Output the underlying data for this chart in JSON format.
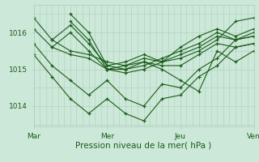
{
  "xlabel": "Pression niveau de la mer( hPa )",
  "bg_color": "#cce8d8",
  "grid_color_v": "#b0ccbc",
  "grid_color_h": "#b0ccbc",
  "line_color": "#1a5c1a",
  "yticks": [
    1014,
    1015,
    1016
  ],
  "ylim": [
    1013.45,
    1016.75
  ],
  "xlim": [
    0,
    72
  ],
  "xtick_positions": [
    0,
    24,
    48,
    72
  ],
  "xtick_labels": [
    "Mar",
    "Mer",
    "Jeu",
    "Ven"
  ],
  "series": [
    [
      0,
      1016.4,
      6,
      1015.8,
      12,
      1015.5,
      18,
      1015.4,
      24,
      1015.2,
      30,
      1015.1,
      36,
      1015.3,
      42,
      1015.2,
      48,
      1015.4,
      54,
      1015.6,
      60,
      1015.9,
      66,
      1015.8,
      72,
      1015.9
    ],
    [
      0,
      1016.1,
      6,
      1015.6,
      12,
      1015.4,
      18,
      1015.3,
      24,
      1015.0,
      30,
      1015.0,
      36,
      1015.2,
      42,
      1015.1,
      48,
      1015.1,
      54,
      1015.4,
      60,
      1015.7,
      66,
      1015.6,
      72,
      1015.7
    ],
    [
      6,
      1015.8,
      12,
      1016.2,
      18,
      1015.7,
      24,
      1015.1,
      30,
      1015.0,
      36,
      1015.1,
      42,
      1015.3,
      48,
      1015.5,
      54,
      1015.7,
      60,
      1016.0,
      66,
      1015.8,
      72,
      1016.0
    ],
    [
      6,
      1015.6,
      12,
      1016.0,
      18,
      1015.5,
      24,
      1015.0,
      30,
      1014.9,
      36,
      1015.0,
      42,
      1015.2,
      48,
      1015.3,
      54,
      1015.5,
      60,
      1015.8,
      66,
      1016.3,
      72,
      1016.4
    ],
    [
      12,
      1016.5,
      18,
      1016.0,
      24,
      1015.1,
      30,
      1015.2,
      36,
      1015.4,
      42,
      1015.2,
      48,
      1015.6,
      54,
      1015.9,
      60,
      1016.1,
      66,
      1015.9,
      72,
      1016.1
    ],
    [
      12,
      1016.3,
      18,
      1015.8,
      24,
      1015.0,
      30,
      1015.1,
      36,
      1015.2,
      42,
      1015.0,
      48,
      1014.7,
      54,
      1014.4,
      60,
      1015.5,
      66,
      1015.2,
      72,
      1015.5
    ],
    [
      0,
      1015.7,
      6,
      1015.1,
      12,
      1014.7,
      18,
      1014.3,
      24,
      1014.7,
      30,
      1014.2,
      36,
      1014.0,
      42,
      1014.6,
      48,
      1014.5,
      54,
      1015.0,
      60,
      1015.3,
      66,
      1015.8,
      72,
      1015.9
    ],
    [
      0,
      1015.4,
      6,
      1014.8,
      12,
      1014.2,
      18,
      1013.8,
      24,
      1014.2,
      30,
      1013.8,
      36,
      1013.6,
      42,
      1014.2,
      48,
      1014.3,
      54,
      1014.8,
      60,
      1015.1,
      66,
      1015.6,
      72,
      1015.7
    ]
  ]
}
